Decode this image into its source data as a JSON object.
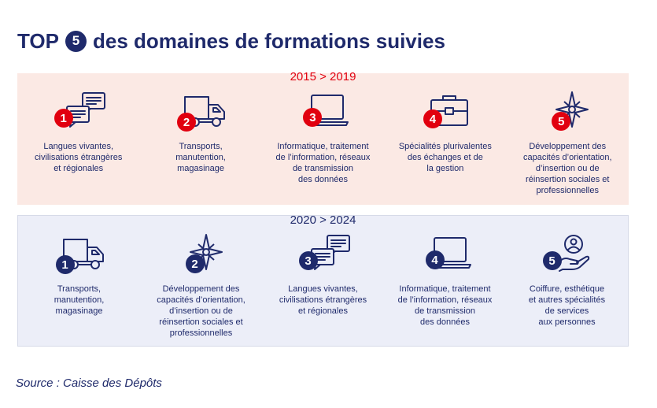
{
  "title": {
    "prefix": "TOP",
    "number": "5",
    "suffix": "des domaines de formations suivies"
  },
  "colors": {
    "navy": "#1f2a6b",
    "red": "#e1000f",
    "panel_2015": "#fbe9e4",
    "panel_2020": "#eceef8"
  },
  "periods": [
    {
      "label": "2015 > 2019",
      "items": [
        {
          "rank": "1",
          "icon": "speech-bubbles-icon",
          "label": "Langues vivantes,\ncivilisations étrangères\net régionales"
        },
        {
          "rank": "2",
          "icon": "truck-icon",
          "label": "Transports,\nmanutention,\nmagasinage"
        },
        {
          "rank": "3",
          "icon": "laptop-icon",
          "label": "Informatique, traitement\nde l’information, réseaux\nde transmission\ndes données"
        },
        {
          "rank": "4",
          "icon": "briefcase-icon",
          "label": "Spécialités plurivalentes\ndes échanges et de\nla gestion"
        },
        {
          "rank": "5",
          "icon": "compass-rose-icon",
          "label": "Développement des\ncapacités d’orientation,\nd’insertion ou de\nréinsertion sociales et\nprofessionnelles"
        }
      ]
    },
    {
      "label": "2020 > 2024",
      "items": [
        {
          "rank": "1",
          "icon": "truck-icon",
          "label": "Transports,\nmanutention,\nmagasinage"
        },
        {
          "rank": "2",
          "icon": "compass-rose-icon",
          "label": "Développement des\ncapacités d’orientation,\nd’insertion ou de\nréinsertion sociales et\nprofessionnelles"
        },
        {
          "rank": "3",
          "icon": "speech-bubbles-icon",
          "label": "Langues vivantes,\ncivilisations étrangères\net régionales"
        },
        {
          "rank": "4",
          "icon": "laptop-icon",
          "label": "Informatique, traitement\nde l’information, réseaux\nde transmission\ndes données"
        },
        {
          "rank": "5",
          "icon": "hand-person-icon",
          "label": "Coiffure, esthétique\net autres spécialités\nde services\naux personnes"
        }
      ]
    }
  ],
  "source": "Source : Caisse des Dépôts"
}
